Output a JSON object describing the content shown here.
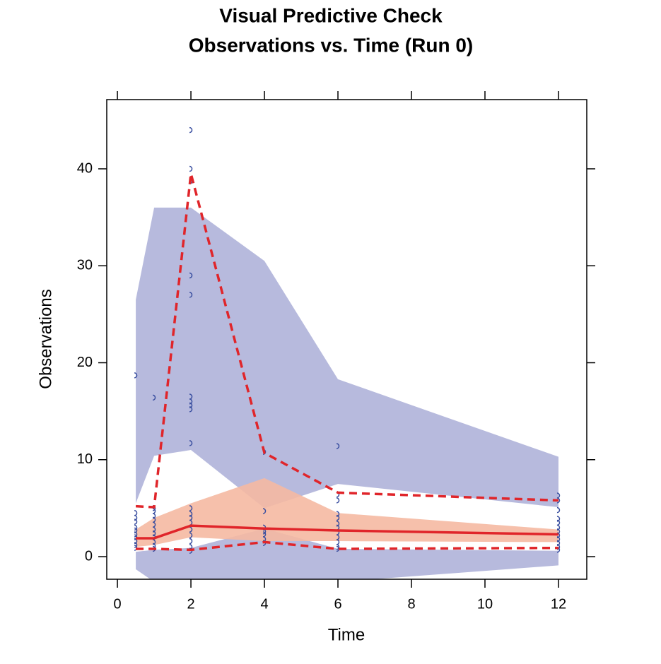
{
  "chart_data": {
    "type": "vpc",
    "title": "Visual Predictive Check",
    "subtitle": "Observations vs. Time (Run 0)",
    "x_label": "Time",
    "y_label": "Observations",
    "xlim": [
      -0.29,
      12.77
    ],
    "ylim": [
      -2.33,
      47.14
    ],
    "xticks": [
      0,
      2,
      4,
      6,
      8,
      10,
      12
    ],
    "yticks": [
      0,
      10,
      20,
      30,
      40
    ],
    "x": [
      0.5,
      1,
      2,
      4,
      6,
      12
    ],
    "bands": [
      {
        "color": "#b7badd",
        "upper": [
          26.5,
          36,
          36,
          30.5,
          18.3,
          10.3
        ],
        "lower": [
          5.5,
          10.4,
          11,
          5,
          7.5,
          5.1
        ]
      },
      {
        "color": "#b7badd",
        "upper": [
          0.5,
          0.7,
          0.9,
          2.9,
          0.8,
          0.6
        ],
        "lower": [
          -1.3,
          -2.6,
          -2.6,
          -2.6,
          -2.6,
          -0.9
        ]
      },
      {
        "color": "#f5b9a2",
        "upper": [
          2.8,
          4,
          5.5,
          8.1,
          4.5,
          2.8
        ],
        "lower": [
          1,
          1.2,
          2,
          1.6,
          1.6,
          1.5
        ]
      }
    ],
    "lines": [
      {
        "color": "#e0252a",
        "dashed": false,
        "values": [
          1.9,
          1.9,
          3.2,
          2.9,
          2.7,
          2.3
        ]
      },
      {
        "color": "#e0252a",
        "dashed": true,
        "values": [
          5.2,
          5.1,
          39.5,
          10.7,
          6.6,
          5.8
        ]
      },
      {
        "color": "#e0252a",
        "dashed": true,
        "values": [
          0.8,
          0.8,
          0.7,
          1.5,
          0.8,
          0.9
        ]
      }
    ],
    "observations": {
      "color": "#3a4fa0",
      "x": [
        0.5,
        0.5,
        0.5,
        0.5,
        0.5,
        0.5,
        0.5,
        0.5,
        0.5,
        0.5,
        0.5,
        1,
        1,
        1,
        1,
        1,
        1,
        1,
        1,
        1,
        1,
        1,
        1,
        2,
        2,
        2,
        2,
        2,
        2,
        2,
        2,
        2,
        2,
        2,
        2,
        2,
        2,
        2,
        2,
        2,
        2,
        2,
        4,
        4,
        4,
        4,
        4,
        4,
        4,
        6,
        6,
        6,
        6,
        6,
        6,
        6,
        6,
        6,
        6,
        6,
        6,
        12,
        12,
        12,
        12,
        12,
        12,
        12,
        12,
        12,
        12,
        12,
        12
      ],
      "y": [
        18.7,
        4.5,
        4,
        3.6,
        3,
        2.7,
        2.3,
        2,
        1.6,
        1.2,
        0.9,
        16.4,
        5,
        4.7,
        4.2,
        3.8,
        3.3,
        2.8,
        2.4,
        2,
        1.5,
        1.1,
        0.8,
        44,
        40,
        38.7,
        29,
        27,
        16.5,
        16,
        15.6,
        15.2,
        11.7,
        5,
        4.4,
        4,
        3.5,
        2.8,
        2.2,
        1.6,
        1,
        0.6,
        10.8,
        4.7,
        3,
        2.6,
        2.3,
        1.8,
        1.4,
        11.4,
        6.4,
        5.8,
        4.4,
        4,
        3.4,
        3,
        2.5,
        2,
        1.5,
        1,
        0.8,
        6.3,
        5.8,
        4.8,
        3.9,
        3.5,
        3,
        2.6,
        2.2,
        1.8,
        1.4,
        1,
        0.7
      ]
    }
  }
}
